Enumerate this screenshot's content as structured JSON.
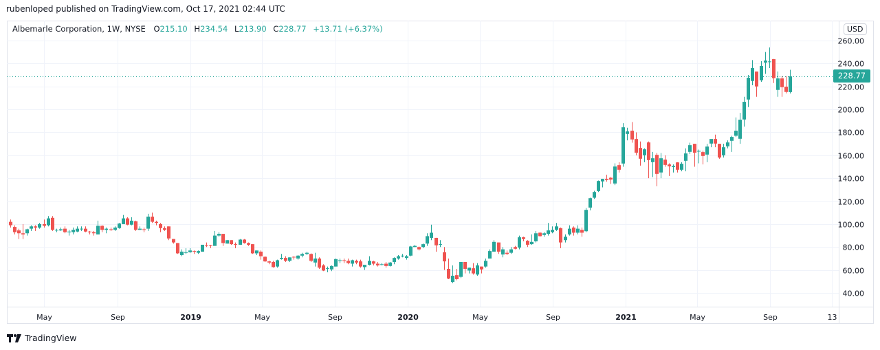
{
  "header": {
    "published": "rubenloped published on TradingView.com, Oct 17, 2021 02:44 UTC"
  },
  "legend": {
    "symbol": "Albemarle Corporation, 1W, NYSE",
    "o_label": "O",
    "o_value": "215.10",
    "h_label": "H",
    "h_value": "234.54",
    "l_label": "L",
    "l_value": "213.90",
    "c_label": "C",
    "c_value": "228.77",
    "change": "+13.71 (+6.37%)"
  },
  "price_axis": {
    "currency": "USD",
    "last_price": "228.77"
  },
  "footer": {
    "brand": "TradingView",
    "icon": "tradingview-logo-icon"
  },
  "colors": {
    "up": "#26a69a",
    "down": "#ef5350",
    "grid": "#f0f3fa",
    "last_line": "#26a69a"
  },
  "chart_data": {
    "type": "candlestick",
    "interval": "1W",
    "x_start": "2018-03-05",
    "ylim": [
      30,
      265
    ],
    "grid": true,
    "y_ticks": [
      40,
      60,
      80,
      100,
      120,
      140,
      160,
      180,
      200,
      220,
      240,
      260
    ],
    "y_tick_labels": [
      "40.00",
      "60.00",
      "80.00",
      "100.00",
      "120.00",
      "140.00",
      "160.00",
      "180.00",
      "200.00",
      "220.00",
      "240.00",
      "260.00"
    ],
    "x_ticks": [
      {
        "label": "May",
        "date": "2018-05-01"
      },
      {
        "label": "Sep",
        "date": "2018-09-01"
      },
      {
        "label": "2019",
        "date": "2019-01-01"
      },
      {
        "label": "May",
        "date": "2019-05-01"
      },
      {
        "label": "Sep",
        "date": "2019-09-01"
      },
      {
        "label": "2020",
        "date": "2020-01-01"
      },
      {
        "label": "May",
        "date": "2020-05-01"
      },
      {
        "label": "Sep",
        "date": "2020-09-01"
      },
      {
        "label": "2021",
        "date": "2021-01-01"
      },
      {
        "label": "May",
        "date": "2021-05-01"
      },
      {
        "label": "Sep",
        "date": "2021-09-01"
      },
      {
        "label": "13",
        "date": "2021-12-13"
      }
    ],
    "last_price": 228.77,
    "ohlc": [
      [
        102,
        104,
        97,
        99
      ],
      [
        97.5,
        99,
        91,
        93
      ],
      [
        94.5,
        96,
        87,
        92
      ],
      [
        92,
        100,
        87,
        91
      ],
      [
        92,
        96,
        90,
        95.5
      ],
      [
        96,
        99,
        94,
        98
      ],
      [
        98,
        99,
        94,
        97
      ],
      [
        97,
        101,
        96,
        100
      ],
      [
        100,
        104,
        97,
        98.5
      ],
      [
        99,
        107,
        98,
        105
      ],
      [
        105.5,
        107,
        94,
        95
      ],
      [
        95,
        96,
        93,
        95
      ],
      [
        94.5,
        97,
        94,
        95.5
      ],
      [
        96,
        98,
        92,
        93
      ],
      [
        93.5,
        95,
        90,
        93.5
      ],
      [
        93,
        97,
        91,
        95
      ],
      [
        93.5,
        98,
        93,
        96
      ],
      [
        96,
        98,
        94,
        96
      ],
      [
        96,
        98,
        93,
        93.5
      ],
      [
        93.5,
        94,
        91,
        93
      ],
      [
        93,
        94,
        90,
        92
      ],
      [
        91,
        103,
        91,
        98.5
      ],
      [
        98.5,
        99,
        93,
        95
      ],
      [
        95,
        97,
        92,
        96
      ],
      [
        95.5,
        97,
        94,
        95
      ],
      [
        95,
        98,
        94,
        97
      ],
      [
        96.5,
        101,
        96,
        100.5
      ],
      [
        100,
        108,
        100,
        105
      ],
      [
        105,
        106,
        99,
        99.5
      ],
      [
        99.5,
        106,
        99,
        103
      ],
      [
        102.5,
        103,
        94,
        95
      ],
      [
        95,
        98,
        95,
        96
      ],
      [
        95.5,
        97,
        93,
        95
      ],
      [
        96,
        109,
        94,
        106.5
      ],
      [
        106.5,
        110,
        101,
        102
      ],
      [
        102,
        103,
        99,
        101
      ],
      [
        100,
        101,
        93,
        96.5
      ],
      [
        96.5,
        98,
        94,
        95
      ],
      [
        98,
        98,
        86,
        87.5
      ],
      [
        87,
        87,
        83,
        84
      ],
      [
        83.5,
        83.5,
        74,
        74.5
      ],
      [
        73,
        78,
        72,
        76
      ],
      [
        75.5,
        79,
        74,
        75.5
      ],
      [
        75.5,
        79,
        75,
        77
      ],
      [
        76.5,
        77,
        74,
        76
      ],
      [
        75,
        77,
        74,
        76.5
      ],
      [
        76,
        82,
        76,
        82
      ],
      [
        81.5,
        84,
        80,
        81
      ],
      [
        81.5,
        82,
        79,
        81
      ],
      [
        81,
        94,
        81,
        90
      ],
      [
        90,
        93,
        89,
        91.5
      ],
      [
        91.5,
        91.5,
        81,
        83.5
      ],
      [
        83,
        86,
        83,
        86
      ],
      [
        86,
        86,
        82,
        82.5
      ],
      [
        82.5,
        84,
        79,
        82
      ],
      [
        82,
        87,
        82,
        86.5
      ],
      [
        86.5,
        87,
        83,
        83.5
      ],
      [
        83.5,
        84,
        81,
        82
      ],
      [
        82.5,
        82.5,
        74,
        74.5
      ],
      [
        74.5,
        77,
        73,
        77
      ],
      [
        76,
        77,
        69,
        72
      ],
      [
        71.5,
        72,
        67,
        67.5
      ],
      [
        67.5,
        68,
        65,
        66.5
      ],
      [
        67,
        68,
        62,
        62.5
      ],
      [
        63,
        69,
        62,
        68.5
      ],
      [
        69.5,
        74,
        69,
        70.5
      ],
      [
        70.5,
        72,
        67,
        68
      ],
      [
        68,
        71,
        67,
        71
      ],
      [
        71.5,
        72,
        69,
        71
      ],
      [
        70,
        73,
        69,
        72.5
      ],
      [
        72.5,
        75,
        71,
        74
      ],
      [
        74,
        76,
        73,
        75
      ],
      [
        74,
        74.5,
        67,
        68
      ],
      [
        66.5,
        75,
        63,
        70
      ],
      [
        70,
        71,
        61,
        62
      ],
      [
        64,
        65,
        59,
        59.5
      ],
      [
        61.5,
        63,
        58,
        61.5
      ],
      [
        60.5,
        64,
        59,
        63.5
      ],
      [
        63,
        70,
        63,
        69.5
      ],
      [
        68.5,
        70,
        66,
        68.5
      ],
      [
        68.5,
        70,
        66,
        68
      ],
      [
        68,
        70,
        65,
        66
      ],
      [
        65.5,
        69,
        63,
        68.5
      ],
      [
        68,
        69,
        65,
        66.5
      ],
      [
        67.5,
        69,
        62,
        63
      ],
      [
        62.5,
        64,
        60,
        64.5
      ],
      [
        64.5,
        72,
        64,
        68
      ],
      [
        67.5,
        68,
        64,
        65.5
      ],
      [
        65.5,
        67,
        63,
        64
      ],
      [
        64.5,
        66,
        64,
        65
      ],
      [
        65.5,
        67,
        62,
        63.5
      ],
      [
        63.5,
        67,
        63,
        66.5
      ],
      [
        67,
        71,
        65,
        70.5
      ],
      [
        70,
        73,
        69,
        72
      ],
      [
        72.5,
        74,
        71,
        72.5
      ],
      [
        70.5,
        73,
        69,
        72
      ],
      [
        72.5,
        81,
        72,
        80.5
      ],
      [
        80,
        82,
        80,
        81
      ],
      [
        80,
        80.5,
        77,
        78
      ],
      [
        80,
        83,
        79,
        82.5
      ],
      [
        83,
        92,
        81,
        89.5
      ],
      [
        88,
        99.5,
        86,
        92.5
      ],
      [
        88,
        88,
        76,
        81.5
      ],
      [
        82.5,
        86,
        80,
        82.5
      ],
      [
        75.5,
        80,
        60,
        67.5
      ],
      [
        61,
        70,
        52,
        52.5
      ],
      [
        49.5,
        64,
        48.5,
        55
      ],
      [
        55.5,
        61,
        51,
        52
      ],
      [
        54,
        67,
        53,
        67
      ],
      [
        67,
        67,
        57,
        61
      ],
      [
        59.5,
        62,
        57,
        62
      ],
      [
        61.5,
        66,
        56,
        57
      ],
      [
        56,
        66,
        55,
        64
      ],
      [
        63,
        63,
        57,
        60.5
      ],
      [
        63,
        70,
        62,
        68
      ],
      [
        70,
        78,
        70,
        76.5
      ],
      [
        76,
        86,
        76,
        84.5
      ],
      [
        84,
        84,
        74,
        76
      ],
      [
        73.5,
        80,
        71,
        78
      ],
      [
        75,
        77,
        73,
        74
      ],
      [
        75,
        80,
        74,
        78
      ],
      [
        80,
        81,
        78,
        78.5
      ],
      [
        79.5,
        90,
        78,
        88.5
      ],
      [
        88.5,
        89,
        85,
        87
      ],
      [
        85.5,
        86,
        80,
        82
      ],
      [
        82.5,
        91,
        82,
        84.5
      ],
      [
        85,
        94,
        84,
        92
      ],
      [
        92.5,
        93,
        89,
        89.5
      ],
      [
        90.5,
        93,
        89,
        92
      ],
      [
        91.5,
        101,
        90,
        94.5
      ],
      [
        93,
        98,
        92,
        95
      ],
      [
        95,
        101,
        94,
        98
      ],
      [
        96.5,
        97,
        79,
        84
      ],
      [
        86,
        91,
        84,
        89
      ],
      [
        91,
        99,
        90,
        96
      ],
      [
        97,
        98,
        90,
        92.5
      ],
      [
        92.5,
        99,
        91,
        96
      ],
      [
        95,
        97,
        89,
        92.5
      ],
      [
        93.8,
        114,
        93,
        112.4
      ],
      [
        114.4,
        123,
        112,
        122.6
      ],
      [
        123,
        129,
        122,
        128
      ],
      [
        128.8,
        138,
        128,
        137.6
      ],
      [
        137.2,
        139.5,
        132,
        139.4
      ],
      [
        139.4,
        143,
        137,
        138.4
      ],
      [
        140.4,
        141,
        135,
        138.8
      ],
      [
        135.4,
        153,
        134,
        150.2
      ],
      [
        151.4,
        154,
        145,
        147.4
      ],
      [
        152.8,
        188,
        150,
        184.4
      ],
      [
        178.6,
        184,
        173,
        180.8
      ],
      [
        181.4,
        189,
        171,
        173.8
      ],
      [
        174.2,
        180,
        160,
        162.2
      ],
      [
        166.4,
        172,
        151,
        157
      ],
      [
        160,
        166,
        154,
        165.2
      ],
      [
        171.2,
        172,
        140,
        155.8
      ],
      [
        154,
        163,
        141,
        157.4
      ],
      [
        160.4,
        162,
        133,
        143.8
      ],
      [
        145,
        162,
        140,
        157.4
      ],
      [
        156.2,
        160,
        150,
        151.6
      ],
      [
        152,
        153,
        142,
        150.4
      ],
      [
        149.8,
        152,
        145,
        150.8
      ],
      [
        153.8,
        154,
        145,
        147.4
      ],
      [
        147.4,
        154,
        146,
        152.6
      ],
      [
        155.2,
        166,
        146,
        161.6
      ],
      [
        163,
        171,
        161,
        168.8
      ],
      [
        170,
        170,
        150,
        162.2
      ],
      [
        163.8,
        165,
        153,
        163.8
      ],
      [
        162.8,
        164,
        152,
        159.4
      ],
      [
        160.6,
        170,
        154,
        167.6
      ],
      [
        170.2,
        174,
        167,
        174.2
      ],
      [
        174.2,
        178,
        167,
        170.2
      ],
      [
        170,
        170,
        157,
        158
      ],
      [
        160,
        170,
        158,
        167
      ],
      [
        167.8,
        173,
        166,
        171.2
      ],
      [
        172.6,
        177,
        163,
        176
      ],
      [
        177,
        193,
        176,
        181.4
      ],
      [
        174.4,
        197,
        170,
        191
      ],
      [
        191.2,
        211,
        185,
        206.6
      ],
      [
        208.6,
        230,
        202,
        227.6
      ],
      [
        224.8,
        243,
        221,
        236
      ],
      [
        233,
        233,
        211,
        220
      ],
      [
        225.4,
        242,
        224,
        237.8
      ],
      [
        240.8,
        250,
        231,
        242.6
      ],
      [
        241.8,
        254,
        236,
        241.8
      ],
      [
        243.8,
        244,
        223,
        227.2
      ],
      [
        217,
        233,
        211,
        227
      ],
      [
        227,
        229,
        211,
        219.4
      ],
      [
        219.8,
        229,
        214,
        215.2
      ],
      [
        215.1,
        234.54,
        213.9,
        228.77
      ]
    ]
  }
}
